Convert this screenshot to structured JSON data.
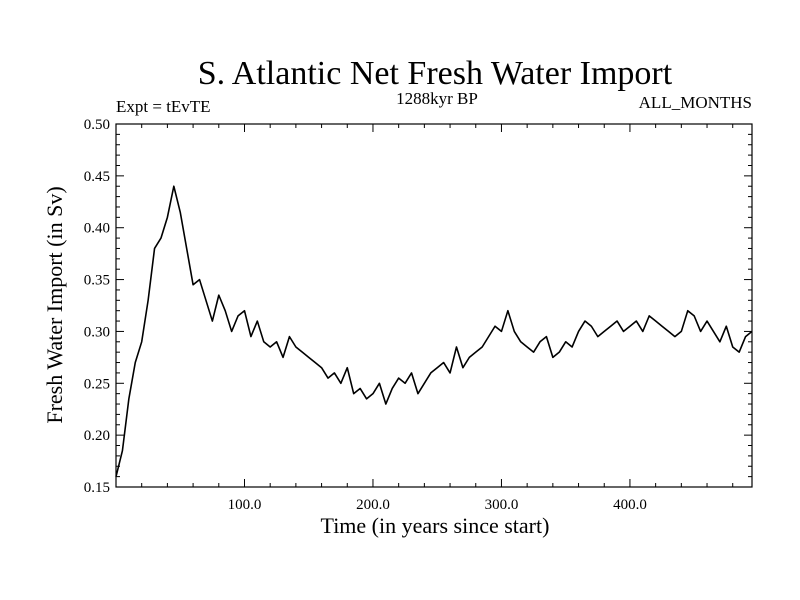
{
  "chart_data": {
    "type": "line",
    "title": "S. Atlantic Net Fresh Water Import",
    "annotations": {
      "left": "Expt = tEvTE",
      "center": "1288kyr BP",
      "right": "ALL_MONTHS"
    },
    "xlabel": "Time (in years since start)",
    "ylabel": "Fresh Water Import (in Sv)",
    "xlim": [
      0,
      495
    ],
    "ylim": [
      0.15,
      0.5
    ],
    "xticks": [
      100,
      200,
      300,
      400
    ],
    "xtick_labels": [
      "100.0",
      "200.0",
      "300.0",
      "400.0"
    ],
    "yticks": [
      0.15,
      0.2,
      0.25,
      0.3,
      0.35,
      0.4,
      0.45,
      0.5
    ],
    "ytick_labels": [
      "0.15",
      "0.20",
      "0.25",
      "0.30",
      "0.35",
      "0.40",
      "0.45",
      "0.50"
    ],
    "series": [
      {
        "name": "fresh water import",
        "color": "#000000",
        "x": [
          0,
          5,
          10,
          15,
          20,
          25,
          30,
          35,
          40,
          45,
          50,
          55,
          60,
          65,
          70,
          75,
          80,
          85,
          90,
          95,
          100,
          105,
          110,
          115,
          120,
          125,
          130,
          135,
          140,
          145,
          150,
          155,
          160,
          165,
          170,
          175,
          180,
          185,
          190,
          195,
          200,
          205,
          210,
          215,
          220,
          225,
          230,
          235,
          240,
          245,
          250,
          255,
          260,
          265,
          270,
          275,
          280,
          285,
          290,
          295,
          300,
          305,
          310,
          315,
          320,
          325,
          330,
          335,
          340,
          345,
          350,
          355,
          360,
          365,
          370,
          375,
          380,
          385,
          390,
          395,
          400,
          405,
          410,
          415,
          420,
          425,
          430,
          435,
          440,
          445,
          450,
          455,
          460,
          465,
          470,
          475,
          480,
          485,
          490,
          495
        ],
        "values": [
          0.16,
          0.185,
          0.235,
          0.27,
          0.29,
          0.33,
          0.38,
          0.39,
          0.41,
          0.44,
          0.415,
          0.38,
          0.345,
          0.35,
          0.33,
          0.31,
          0.335,
          0.32,
          0.3,
          0.315,
          0.32,
          0.295,
          0.31,
          0.29,
          0.285,
          0.29,
          0.275,
          0.295,
          0.285,
          0.28,
          0.275,
          0.27,
          0.265,
          0.255,
          0.26,
          0.25,
          0.265,
          0.24,
          0.245,
          0.235,
          0.24,
          0.25,
          0.23,
          0.245,
          0.255,
          0.25,
          0.26,
          0.24,
          0.25,
          0.26,
          0.265,
          0.27,
          0.26,
          0.285,
          0.265,
          0.275,
          0.28,
          0.285,
          0.295,
          0.305,
          0.3,
          0.32,
          0.3,
          0.29,
          0.285,
          0.28,
          0.29,
          0.295,
          0.275,
          0.28,
          0.29,
          0.285,
          0.3,
          0.31,
          0.305,
          0.295,
          0.3,
          0.305,
          0.31,
          0.3,
          0.305,
          0.31,
          0.3,
          0.315,
          0.31,
          0.305,
          0.3,
          0.295,
          0.3,
          0.32,
          0.315,
          0.3,
          0.31,
          0.3,
          0.29,
          0.305,
          0.285,
          0.28,
          0.295,
          0.3
        ]
      }
    ]
  }
}
